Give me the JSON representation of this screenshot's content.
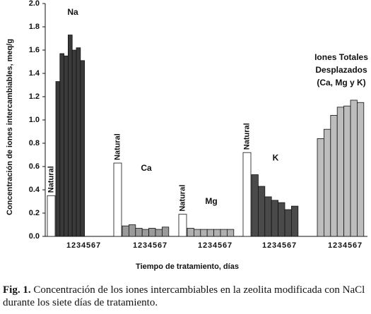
{
  "chart_data": {
    "type": "bar",
    "y_label": "Concentración de iones intercambiables, meq/g",
    "x_label": "Tiempo de tratamiento, días",
    "ylim": [
      0,
      2
    ],
    "yticks": [
      {
        "value": 0,
        "label": "0.0"
      },
      0.2,
      0.4,
      0.6,
      0.8,
      {
        "value": 1,
        "label": "1.0"
      },
      1.2,
      1.4,
      1.6,
      1.8,
      {
        "value": 2,
        "label": "2.0"
      }
    ],
    "categories": [
      "1",
      "2",
      "3",
      "4",
      "5",
      "6",
      "7"
    ],
    "natural_label": "Natural",
    "natural_color": "#ffffff",
    "groups": [
      {
        "label": [
          "Na"
        ],
        "color": "#3a3a3a",
        "natural": 0.35,
        "values": [
          1.33,
          1.57,
          1.55,
          1.73,
          1.6,
          1.62,
          1.51
        ]
      },
      {
        "label": [
          "Ca"
        ],
        "color": "#9a9a9a",
        "natural": 0.63,
        "values": [
          0.09,
          0.1,
          0.07,
          0.06,
          0.07,
          0.06,
          0.08
        ]
      },
      {
        "label": [
          "Mg"
        ],
        "color": "#b0b0b0",
        "natural": 0.19,
        "values": [
          0.07,
          0.06,
          0.06,
          0.06,
          0.06,
          0.06,
          0.06
        ]
      },
      {
        "label": [
          "K"
        ],
        "color": "#4a4a4a",
        "natural": 0.72,
        "values": [
          0.53,
          0.43,
          0.34,
          0.31,
          0.29,
          0.23,
          0.26
        ]
      },
      {
        "label": [
          "Iones Totales",
          "Desplazados",
          "(Ca, Mg y K)"
        ],
        "color": "#bdbdbd",
        "natural": null,
        "values": [
          0.84,
          0.92,
          1.04,
          1.11,
          1.12,
          1.17,
          1.15
        ]
      }
    ]
  },
  "caption": {
    "figure": "Fig. 1.",
    "text": "Concentración de los iones intercambiables en la zeolita modificada con NaCl durante los siete días de tratamiento."
  }
}
